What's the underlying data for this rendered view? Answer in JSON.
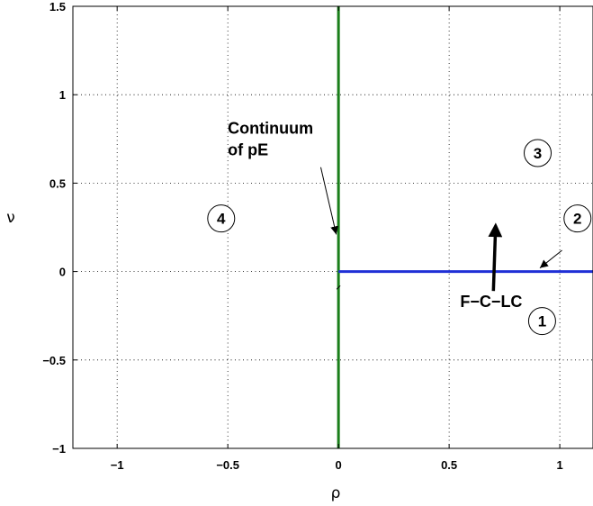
{
  "chart_data": {
    "type": "line",
    "title": "",
    "xlabel": "ρ",
    "ylabel": "ν",
    "xlim": [
      -1.2,
      1.15
    ],
    "ylim": [
      -1,
      1.5
    ],
    "grid": true,
    "xticks": [
      -1,
      -0.5,
      0,
      0.5,
      1
    ],
    "xtick_labels": [
      "−1",
      "−0.5",
      "0",
      "0.5",
      "1"
    ],
    "yticks": [
      -1,
      -0.5,
      0,
      0.5,
      1,
      1.5
    ],
    "ytick_labels": [
      "−1",
      "−0.5",
      "0",
      "0.5",
      "1",
      "1.5"
    ],
    "series": [
      {
        "color": "#1a7f1a",
        "x": [
          0,
          0
        ],
        "y": [
          -1,
          1.5
        ]
      },
      {
        "color": "#1f2fd6",
        "x": [
          0,
          1.15
        ],
        "y": [
          0,
          0
        ]
      }
    ],
    "annotations": [
      {
        "id": "continuum",
        "lines": [
          "Continuum",
          "of pE"
        ],
        "text_at": [
          -0.5,
          0.78
        ],
        "arrow_from": [
          -0.08,
          0.59
        ],
        "arrow_to": [
          -0.01,
          0.21
        ]
      },
      {
        "id": "fclc",
        "lines": [
          "F−C−LC"
        ],
        "text_at": [
          0.55,
          -0.2
        ],
        "arrow_from": [
          0.7,
          -0.11
        ],
        "arrow_to": [
          0.71,
          0.26
        ]
      },
      {
        "id": "region2",
        "lines": [
          "2"
        ],
        "text_at": [
          1.08,
          0.3
        ],
        "arrow_from": [
          1.01,
          0.12
        ],
        "arrow_to": [
          0.91,
          0.02
        ]
      }
    ],
    "regions": [
      {
        "label": "1",
        "x": 0.92,
        "y": -0.28
      },
      {
        "label": "2",
        "x": 1.08,
        "y": 0.3
      },
      {
        "label": "3",
        "x": 0.9,
        "y": 0.67
      },
      {
        "label": "4",
        "x": -0.53,
        "y": 0.3
      }
    ]
  }
}
